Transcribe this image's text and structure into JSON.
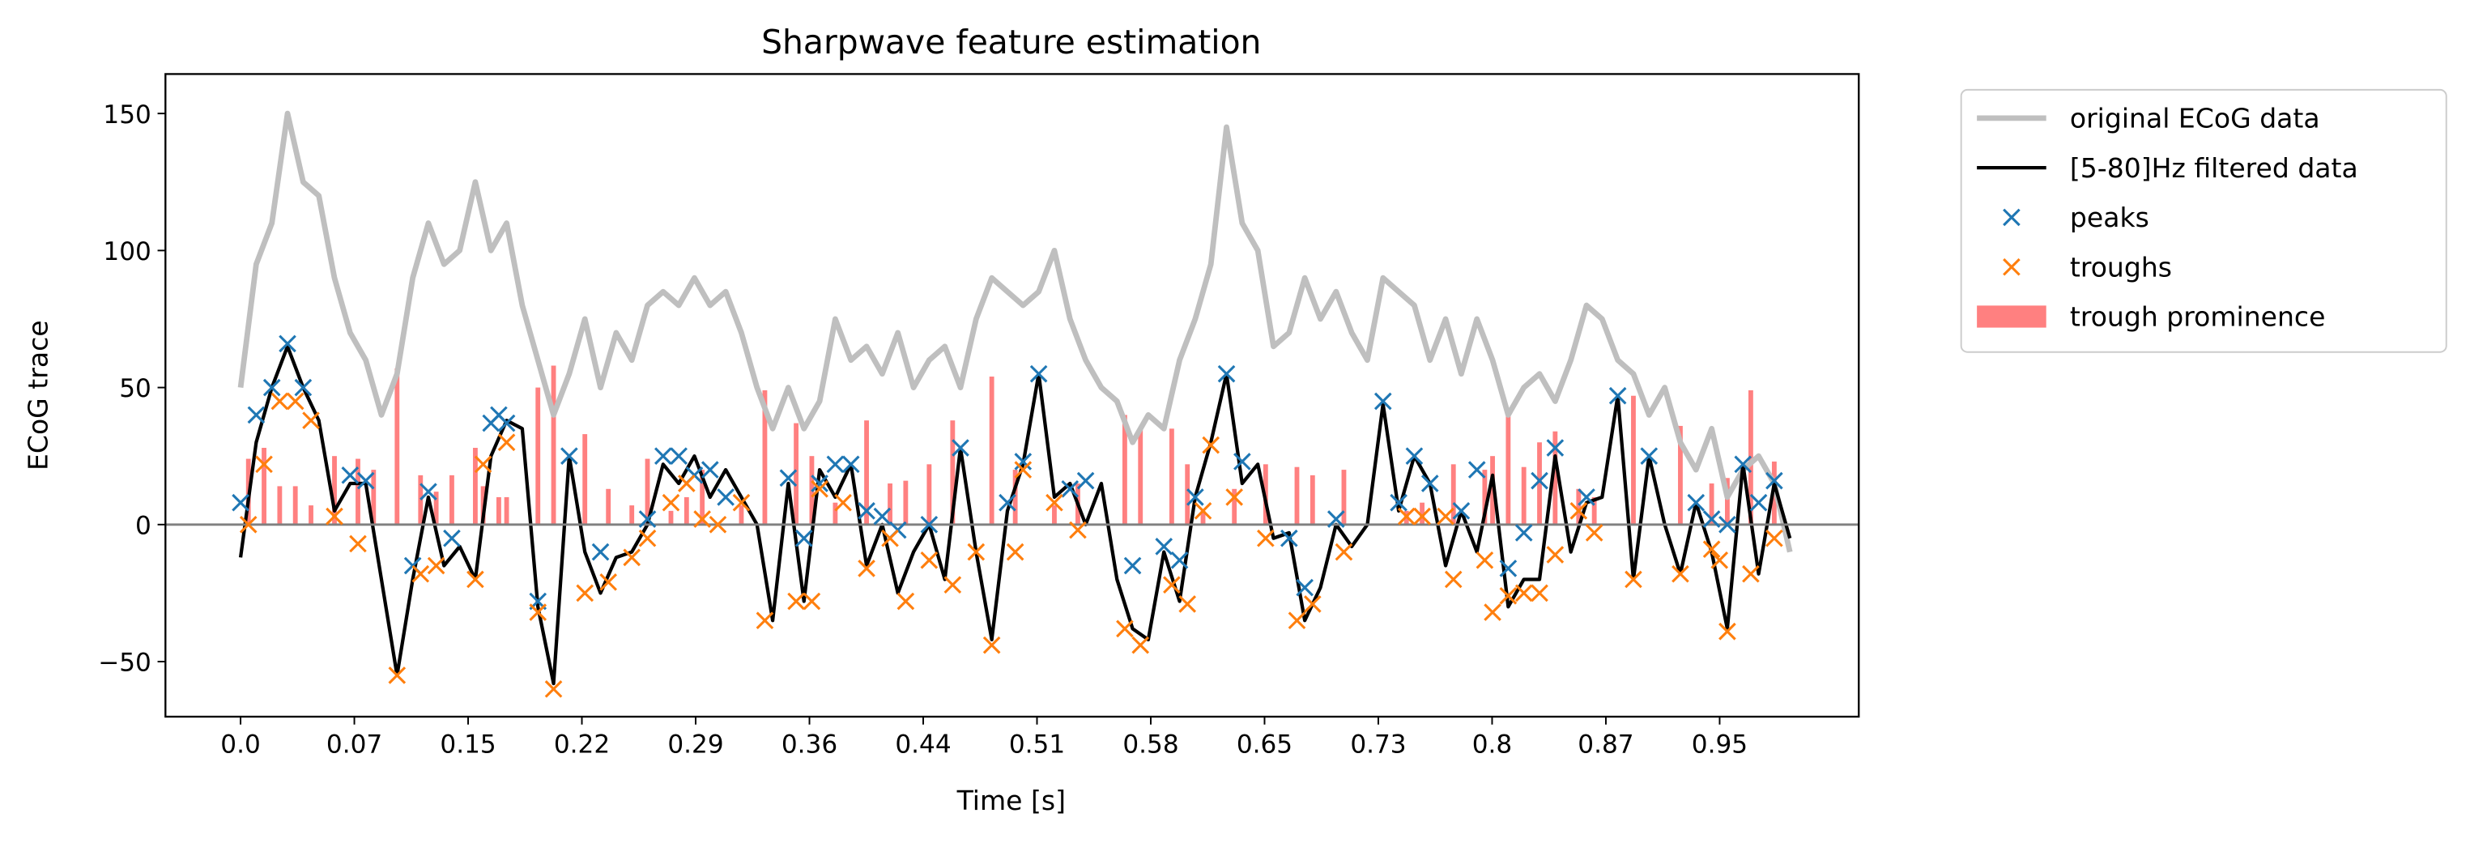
{
  "chart_data": {
    "type": "line",
    "title": "Sharpwave feature estimation",
    "x_label": "Time [s]",
    "y_label": "ECoG trace",
    "xlim": [
      -0.048,
      1.034
    ],
    "ylim": [
      -70.1,
      164.4
    ],
    "xticks": [
      {
        "value": 0,
        "label": "0.0"
      },
      {
        "value": 0.0727,
        "label": "0.07"
      },
      {
        "value": 0.1454,
        "label": "0.15"
      },
      {
        "value": 0.2181,
        "label": "0.22"
      },
      {
        "value": 0.2908,
        "label": "0.29"
      },
      {
        "value": 0.3635,
        "label": "0.36"
      },
      {
        "value": 0.4362,
        "label": "0.44"
      },
      {
        "value": 0.5089,
        "label": "0.51"
      },
      {
        "value": 0.5816,
        "label": "0.58"
      },
      {
        "value": 0.6543,
        "label": "0.65"
      },
      {
        "value": 0.727,
        "label": "0.73"
      },
      {
        "value": 0.7997,
        "label": "0.8"
      },
      {
        "value": 0.8724,
        "label": "0.87"
      },
      {
        "value": 0.9451,
        "label": "0.95"
      }
    ],
    "yticks": [
      {
        "value": -50,
        "label": "−50"
      },
      0,
      50,
      100,
      150
    ],
    "axhline": 0,
    "legend": "outside-upper-right",
    "series": [
      {
        "name": "trough prominence",
        "kind": "bar",
        "color": "#ff8080",
        "x": [
          0.005,
          0.015,
          0.025,
          0.035,
          0.045,
          0.06,
          0.075,
          0.085,
          0.1,
          0.115,
          0.125,
          0.135,
          0.15,
          0.155,
          0.165,
          0.17,
          0.19,
          0.2,
          0.22,
          0.235,
          0.25,
          0.26,
          0.275,
          0.285,
          0.295,
          0.32,
          0.335,
          0.355,
          0.365,
          0.38,
          0.4,
          0.415,
          0.425,
          0.44,
          0.455,
          0.48,
          0.495,
          0.52,
          0.535,
          0.565,
          0.575,
          0.595,
          0.605,
          0.615,
          0.635,
          0.655,
          0.675,
          0.685,
          0.705,
          0.745,
          0.755,
          0.775,
          0.795,
          0.8,
          0.81,
          0.82,
          0.83,
          0.84,
          0.855,
          0.865,
          0.89,
          0.92,
          0.94,
          0.95,
          0.965,
          0.98
        ],
        "values": [
          24,
          28,
          14,
          14,
          7,
          25,
          24,
          20,
          57,
          18,
          12,
          18,
          28,
          14,
          10,
          10,
          50,
          58,
          33,
          13,
          7,
          24,
          5,
          10,
          20,
          7,
          49,
          37,
          25,
          8,
          38,
          15,
          16,
          22,
          38,
          54,
          20,
          7,
          15,
          40,
          35,
          35,
          22,
          5,
          13,
          22,
          21,
          18,
          20,
          5,
          8,
          22,
          20,
          25,
          40,
          21,
          30,
          34,
          13,
          10,
          47,
          36,
          15,
          17,
          49,
          23
        ]
      },
      {
        "name": "original ECoG data",
        "kind": "line",
        "color": "#bfbfbf",
        "x": [
          0,
          0.01,
          0.02,
          0.03,
          0.04,
          0.05,
          0.06,
          0.07,
          0.08,
          0.09,
          0.1,
          0.11,
          0.12,
          0.13,
          0.14,
          0.15,
          0.16,
          0.17,
          0.18,
          0.19,
          0.2,
          0.21,
          0.22,
          0.23,
          0.24,
          0.25,
          0.26,
          0.27,
          0.28,
          0.29,
          0.3,
          0.31,
          0.32,
          0.33,
          0.34,
          0.35,
          0.36,
          0.37,
          0.38,
          0.39,
          0.4,
          0.41,
          0.42,
          0.43,
          0.44,
          0.45,
          0.46,
          0.47,
          0.48,
          0.49,
          0.5,
          0.51,
          0.52,
          0.53,
          0.54,
          0.55,
          0.56,
          0.57,
          0.58,
          0.59,
          0.6,
          0.61,
          0.62,
          0.63,
          0.64,
          0.65,
          0.66,
          0.67,
          0.68,
          0.69,
          0.7,
          0.71,
          0.72,
          0.73,
          0.74,
          0.75,
          0.76,
          0.77,
          0.78,
          0.79,
          0.8,
          0.81,
          0.82,
          0.83,
          0.84,
          0.85,
          0.86,
          0.87,
          0.88,
          0.89,
          0.9,
          0.91,
          0.92,
          0.93,
          0.94,
          0.95,
          0.96,
          0.97,
          0.98,
          0.99
        ],
        "values": [
          50,
          95,
          110,
          150,
          125,
          120,
          90,
          70,
          60,
          40,
          55,
          90,
          110,
          95,
          100,
          125,
          100,
          110,
          80,
          60,
          40,
          55,
          75,
          50,
          70,
          60,
          80,
          85,
          80,
          90,
          80,
          85,
          70,
          50,
          35,
          50,
          35,
          45,
          75,
          60,
          65,
          55,
          70,
          50,
          60,
          65,
          50,
          75,
          90,
          85,
          80,
          85,
          100,
          75,
          60,
          50,
          45,
          30,
          40,
          35,
          60,
          75,
          95,
          145,
          110,
          100,
          65,
          70,
          90,
          75,
          85,
          70,
          60,
          90,
          85,
          80,
          60,
          75,
          55,
          75,
          60,
          40,
          50,
          55,
          45,
          60,
          80,
          75,
          60,
          55,
          40,
          50,
          30,
          20,
          35,
          10,
          20,
          25,
          15,
          -10
        ]
      },
      {
        "name": "[5-80]Hz filtered data",
        "kind": "line",
        "color": "#000000",
        "x": [
          0,
          0.01,
          0.02,
          0.03,
          0.04,
          0.05,
          0.06,
          0.07,
          0.08,
          0.09,
          0.1,
          0.11,
          0.12,
          0.13,
          0.14,
          0.15,
          0.16,
          0.17,
          0.18,
          0.19,
          0.2,
          0.21,
          0.22,
          0.23,
          0.24,
          0.25,
          0.26,
          0.27,
          0.28,
          0.29,
          0.3,
          0.31,
          0.32,
          0.33,
          0.34,
          0.35,
          0.36,
          0.37,
          0.38,
          0.39,
          0.4,
          0.41,
          0.42,
          0.43,
          0.44,
          0.45,
          0.46,
          0.47,
          0.48,
          0.49,
          0.5,
          0.51,
          0.52,
          0.53,
          0.54,
          0.55,
          0.56,
          0.57,
          0.58,
          0.59,
          0.6,
          0.61,
          0.62,
          0.63,
          0.64,
          0.65,
          0.66,
          0.67,
          0.68,
          0.69,
          0.7,
          0.71,
          0.72,
          0.73,
          0.74,
          0.75,
          0.76,
          0.77,
          0.78,
          0.79,
          0.8,
          0.81,
          0.82,
          0.83,
          0.84,
          0.85,
          0.86,
          0.87,
          0.88,
          0.89,
          0.9,
          0.91,
          0.92,
          0.93,
          0.94,
          0.95,
          0.96,
          0.97,
          0.98,
          0.99
        ],
        "values": [
          -12,
          30,
          50,
          65,
          50,
          38,
          5,
          15,
          15,
          -20,
          -55,
          -20,
          10,
          -15,
          -8,
          -20,
          25,
          38,
          35,
          -30,
          -58,
          25,
          -10,
          -25,
          -12,
          -10,
          0,
          22,
          15,
          25,
          10,
          20,
          10,
          0,
          -35,
          15,
          -28,
          20,
          10,
          22,
          -15,
          0,
          -25,
          -10,
          0,
          -20,
          28,
          -10,
          -42,
          5,
          22,
          55,
          10,
          15,
          0,
          15,
          -20,
          -38,
          -42,
          -10,
          -28,
          10,
          30,
          55,
          15,
          22,
          -5,
          -3,
          -35,
          -23,
          0,
          -8,
          0,
          44,
          5,
          25,
          15,
          -15,
          5,
          -10,
          18,
          -30,
          -20,
          -20,
          25,
          -10,
          8,
          10,
          47,
          -20,
          25,
          0,
          -18,
          8,
          -10,
          -38,
          22,
          -18,
          15,
          -5
        ]
      },
      {
        "name": "peaks",
        "kind": "marker",
        "color": "#1f77b4",
        "x": [
          0,
          0.01,
          0.02,
          0.03,
          0.04,
          0.07,
          0.08,
          0.11,
          0.12,
          0.135,
          0.16,
          0.165,
          0.17,
          0.19,
          0.21,
          0.23,
          0.26,
          0.27,
          0.28,
          0.29,
          0.3,
          0.31,
          0.35,
          0.36,
          0.37,
          0.38,
          0.39,
          0.4,
          0.41,
          0.42,
          0.44,
          0.46,
          0.49,
          0.5,
          0.51,
          0.53,
          0.54,
          0.57,
          0.59,
          0.6,
          0.61,
          0.63,
          0.64,
          0.67,
          0.68,
          0.7,
          0.73,
          0.74,
          0.75,
          0.76,
          0.78,
          0.79,
          0.81,
          0.82,
          0.83,
          0.84,
          0.86,
          0.88,
          0.9,
          0.93,
          0.94,
          0.95,
          0.96,
          0.97,
          0.98
        ],
        "values": [
          8,
          40,
          50,
          66,
          50,
          18,
          16,
          -15,
          12,
          -5,
          37,
          40,
          37,
          -28,
          25,
          -10,
          2,
          25,
          25,
          18,
          20,
          10,
          17,
          -5,
          15,
          22,
          22,
          5,
          3,
          -2,
          0,
          28,
          8,
          23,
          55,
          13,
          16,
          -15,
          -8,
          -13,
          10,
          55,
          23,
          -5,
          -23,
          2,
          45,
          8,
          25,
          15,
          5,
          20,
          -16,
          -3,
          16,
          28,
          10,
          47,
          25,
          8,
          2,
          0,
          22,
          8,
          16
        ]
      },
      {
        "name": "troughs",
        "kind": "marker",
        "color": "#ff7f0e",
        "x": [
          0.005,
          0.015,
          0.025,
          0.035,
          0.045,
          0.06,
          0.075,
          0.1,
          0.115,
          0.125,
          0.15,
          0.155,
          0.17,
          0.19,
          0.2,
          0.22,
          0.235,
          0.25,
          0.26,
          0.275,
          0.285,
          0.295,
          0.305,
          0.32,
          0.335,
          0.355,
          0.365,
          0.37,
          0.385,
          0.4,
          0.415,
          0.425,
          0.44,
          0.455,
          0.47,
          0.48,
          0.495,
          0.5,
          0.52,
          0.535,
          0.565,
          0.575,
          0.595,
          0.605,
          0.615,
          0.62,
          0.635,
          0.655,
          0.675,
          0.685,
          0.705,
          0.745,
          0.755,
          0.77,
          0.775,
          0.795,
          0.8,
          0.81,
          0.82,
          0.83,
          0.84,
          0.855,
          0.865,
          0.89,
          0.92,
          0.94,
          0.945,
          0.95,
          0.965,
          0.98
        ],
        "values": [
          0,
          22,
          45,
          45,
          38,
          3,
          -7,
          -55,
          -18,
          -15,
          -20,
          22,
          30,
          -32,
          -60,
          -25,
          -21,
          -12,
          -5,
          8,
          15,
          2,
          0,
          8,
          -35,
          -28,
          -28,
          13,
          8,
          -16,
          -5,
          -28,
          -13,
          -22,
          -10,
          -44,
          -10,
          20,
          8,
          -2,
          -38,
          -44,
          -22,
          -29,
          5,
          29,
          10,
          -5,
          -35,
          -29,
          -10,
          3,
          3,
          3,
          -20,
          -13,
          -32,
          -26,
          -25,
          -25,
          -11,
          5,
          -3,
          -20,
          -18,
          -9,
          -13,
          -39,
          -18,
          -5
        ]
      }
    ]
  }
}
